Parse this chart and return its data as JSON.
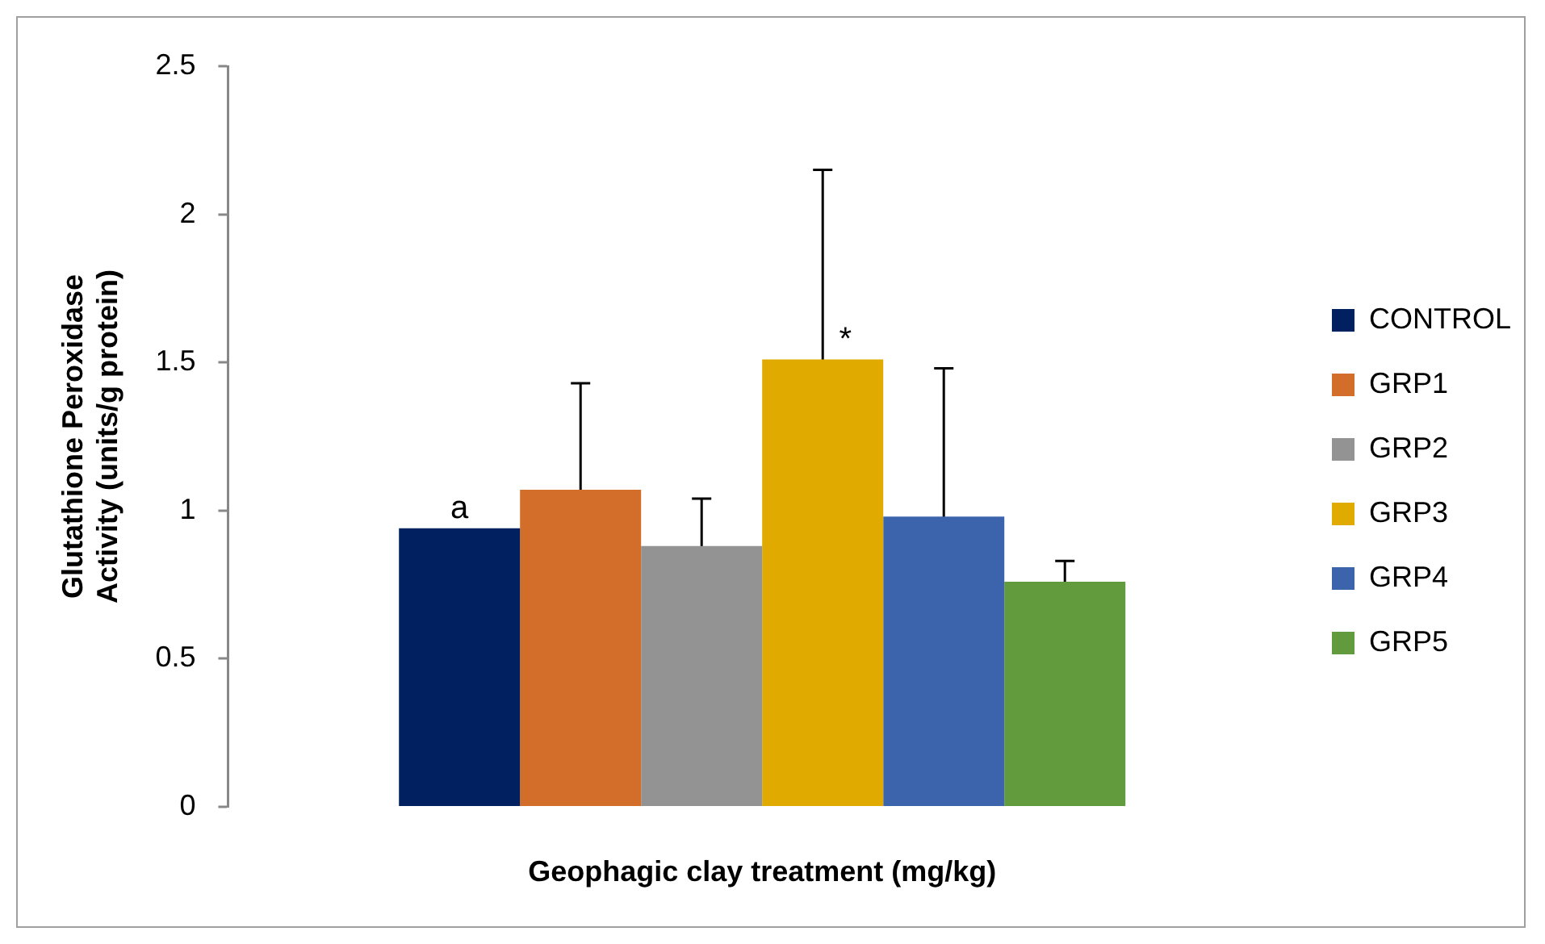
{
  "chart_data": {
    "type": "bar",
    "xlabel": "Geophagic clay treatment (mg/kg)",
    "ylabel": "Glutathione Peroxidase Activity (units/g protein)",
    "categories": [
      null
    ],
    "ylim": [
      0,
      2.5
    ],
    "yticks": [
      0,
      0.5,
      1,
      1.5,
      2,
      2.5
    ],
    "grid": false,
    "legend": "right",
    "series": [
      {
        "name": "CONTROL",
        "color": "#002060",
        "values": [
          0.94
        ],
        "errors": [
          null
        ],
        "value_labels": [
          "a"
        ]
      },
      {
        "name": "GRP1",
        "color": "#d26d2a",
        "values": [
          1.07
        ],
        "errors": [
          0.36
        ],
        "value_labels": [
          null
        ]
      },
      {
        "name": "GRP2",
        "color": "#939393",
        "values": [
          0.88
        ],
        "errors": [
          0.16
        ],
        "value_labels": [
          null
        ]
      },
      {
        "name": "GRP3",
        "color": "#e0aa00",
        "values": [
          1.51
        ],
        "errors": [
          0.64
        ],
        "value_labels": [
          "*"
        ]
      },
      {
        "name": "GRP4",
        "color": "#3c64ac",
        "values": [
          0.98
        ],
        "errors": [
          0.5
        ],
        "value_labels": [
          null
        ]
      },
      {
        "name": "GRP5",
        "color": "#629a3e",
        "values": [
          0.76
        ],
        "errors": [
          0.07
        ],
        "value_labels": [
          null
        ]
      }
    ]
  }
}
